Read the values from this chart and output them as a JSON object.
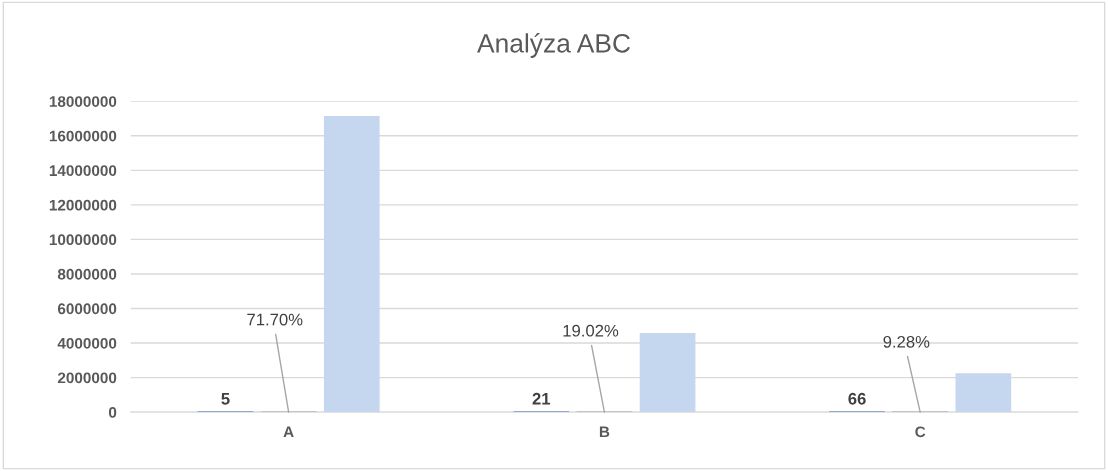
{
  "chart_data": {
    "type": "bar",
    "title": "Analýza ABC",
    "categories": [
      "A",
      "B",
      "C"
    ],
    "series": [
      {
        "color": "#4472c4",
        "values": [
          5,
          21,
          66
        ],
        "value_labels": [
          "5",
          "21",
          "66"
        ]
      },
      {
        "color": "#a5a5a5",
        "values": [
          71.7,
          19.02,
          9.28
        ],
        "value_labels": [
          "71.70%",
          "19.02%",
          "9.28%"
        ]
      },
      {
        "color": "#c5d7ef",
        "values": [
          17100000,
          4540000,
          2210000
        ]
      }
    ],
    "ylim": [
      0,
      18000000
    ],
    "yticks": [
      0,
      2000000,
      4000000,
      6000000,
      8000000,
      10000000,
      12000000,
      14000000,
      16000000,
      18000000
    ],
    "grid": "y",
    "legend": false
  }
}
